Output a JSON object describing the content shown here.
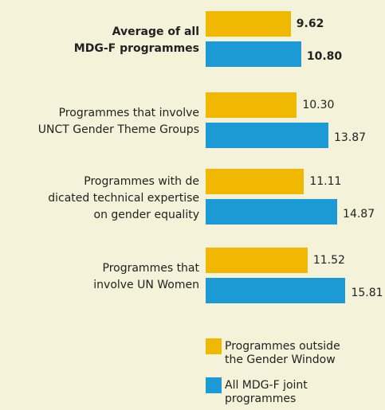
{
  "chart_data": {
    "type": "hbar",
    "categories": [
      "Average of all\nMDG-F programmes",
      "Programmes that involve\nUNCT Gender Theme Groups",
      "Programmes with de\ndicated technical expertise\non gender equality",
      "Programmes that\ninvolve UN Women"
    ],
    "series": [
      {
        "name": "Programmes outside\nthe Gender Window",
        "color": "#f0b800",
        "values": [
          9.62,
          10.3,
          11.11,
          11.52
        ],
        "value_labels": [
          "9.62",
          "10.30",
          "11.11",
          "11.52"
        ]
      },
      {
        "name": "All MDG-F joint\nprogrammes",
        "color": "#1b9ad6",
        "values": [
          10.8,
          13.87,
          14.87,
          15.81
        ],
        "value_labels": [
          "10.80",
          "13.87",
          "14.87",
          "15.81"
        ]
      }
    ],
    "xlim": [
      0,
      20
    ],
    "bold_categories": [
      0
    ]
  }
}
